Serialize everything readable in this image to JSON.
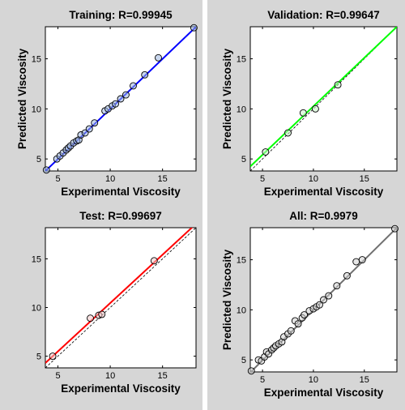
{
  "chart_data": [
    {
      "type": "scatter",
      "title": "Training: R=0.99945",
      "xlabel": "Experimental Viscosity",
      "ylabel": "Predicted Viscosity",
      "xlim": [
        3.8,
        18.2
      ],
      "ylim": [
        3.8,
        18.2
      ],
      "xticks": [
        5,
        10,
        15
      ],
      "yticks": [
        5,
        10,
        15
      ],
      "grid": false,
      "fit_color": "#0000ff",
      "marker_fill": "#9db6e0",
      "fit_line": {
        "x": [
          3.8,
          18.2
        ],
        "y": [
          3.79,
          18.19
        ]
      },
      "identity_line": true,
      "points": [
        {
          "x": 3.9,
          "y": 3.9
        },
        {
          "x": 4.9,
          "y": 5.0
        },
        {
          "x": 5.2,
          "y": 5.3
        },
        {
          "x": 5.5,
          "y": 5.6
        },
        {
          "x": 5.8,
          "y": 5.9
        },
        {
          "x": 6.0,
          "y": 6.1
        },
        {
          "x": 6.2,
          "y": 6.3
        },
        {
          "x": 6.5,
          "y": 6.6
        },
        {
          "x": 6.8,
          "y": 6.8
        },
        {
          "x": 7.0,
          "y": 6.9
        },
        {
          "x": 7.2,
          "y": 7.4
        },
        {
          "x": 7.6,
          "y": 7.6
        },
        {
          "x": 8.0,
          "y": 8.0
        },
        {
          "x": 8.5,
          "y": 8.6
        },
        {
          "x": 9.5,
          "y": 9.8
        },
        {
          "x": 9.8,
          "y": 10.0
        },
        {
          "x": 10.2,
          "y": 10.3
        },
        {
          "x": 10.5,
          "y": 10.5
        },
        {
          "x": 11.0,
          "y": 11.0
        },
        {
          "x": 11.5,
          "y": 11.4
        },
        {
          "x": 12.2,
          "y": 12.3
        },
        {
          "x": 13.3,
          "y": 13.4
        },
        {
          "x": 14.6,
          "y": 15.1
        },
        {
          "x": 18.0,
          "y": 18.1
        }
      ]
    },
    {
      "type": "scatter",
      "title": "Validation: R=0.99647",
      "xlabel": "Experimental Viscosity",
      "ylabel": "Predicted Viscosity",
      "xlim": [
        3.8,
        18.2
      ],
      "ylim": [
        3.8,
        18.2
      ],
      "xticks": [
        5,
        10,
        15
      ],
      "yticks": [
        5,
        10,
        15
      ],
      "grid": false,
      "fit_color": "#00ff00",
      "marker_fill": "#c8f0c8",
      "fit_line": {
        "x": [
          3.8,
          18.2
        ],
        "y": [
          4.25,
          18.2
        ]
      },
      "identity_line": true,
      "points": [
        {
          "x": 5.3,
          "y": 5.7
        },
        {
          "x": 7.5,
          "y": 7.6
        },
        {
          "x": 9.0,
          "y": 9.6
        },
        {
          "x": 10.2,
          "y": 10.0
        },
        {
          "x": 12.4,
          "y": 12.4
        }
      ]
    },
    {
      "type": "scatter",
      "title": "Test: R=0.99697",
      "xlabel": "Experimental Viscosity",
      "ylabel": "",
      "xlim": [
        3.8,
        18.2
      ],
      "ylim": [
        3.8,
        18.2
      ],
      "xticks": [
        5,
        10,
        15
      ],
      "yticks": [
        5,
        10,
        15
      ],
      "grid": false,
      "fit_color": "#ff0000",
      "marker_fill": "#f0c8c8",
      "fit_line": {
        "x": [
          3.8,
          18.2
        ],
        "y": [
          4.3,
          18.6
        ]
      },
      "identity_line": true,
      "points": [
        {
          "x": 4.5,
          "y": 5.0
        },
        {
          "x": 8.1,
          "y": 8.9
        },
        {
          "x": 8.9,
          "y": 9.2
        },
        {
          "x": 9.2,
          "y": 9.3
        },
        {
          "x": 14.2,
          "y": 14.8
        }
      ]
    },
    {
      "type": "scatter",
      "title": "All: R=0.9979",
      "xlabel": "Experimental Viscosity",
      "ylabel": "Predicted Viscosity",
      "xlim": [
        3.8,
        18.2
      ],
      "ylim": [
        3.8,
        18.2
      ],
      "xticks": [
        5,
        10,
        15
      ],
      "yticks": [
        5,
        10,
        15
      ],
      "grid": false,
      "fit_color": "#707070",
      "marker_fill": "#d0d0d0",
      "fit_line": {
        "x": [
          3.8,
          18.2
        ],
        "y": [
          3.75,
          18.2
        ]
      },
      "identity_line": true,
      "points": [
        {
          "x": 3.9,
          "y": 3.9
        },
        {
          "x": 4.6,
          "y": 5.0
        },
        {
          "x": 4.9,
          "y": 4.9
        },
        {
          "x": 5.2,
          "y": 5.3
        },
        {
          "x": 5.4,
          "y": 5.8
        },
        {
          "x": 5.6,
          "y": 5.6
        },
        {
          "x": 5.9,
          "y": 6.0
        },
        {
          "x": 6.1,
          "y": 6.2
        },
        {
          "x": 6.3,
          "y": 6.4
        },
        {
          "x": 6.6,
          "y": 6.6
        },
        {
          "x": 6.9,
          "y": 6.8
        },
        {
          "x": 7.1,
          "y": 7.3
        },
        {
          "x": 7.5,
          "y": 7.6
        },
        {
          "x": 7.8,
          "y": 7.9
        },
        {
          "x": 8.2,
          "y": 8.9
        },
        {
          "x": 8.5,
          "y": 8.6
        },
        {
          "x": 8.9,
          "y": 9.2
        },
        {
          "x": 9.1,
          "y": 9.5
        },
        {
          "x": 9.6,
          "y": 9.9
        },
        {
          "x": 10.0,
          "y": 10.1
        },
        {
          "x": 10.3,
          "y": 10.3
        },
        {
          "x": 10.6,
          "y": 10.5
        },
        {
          "x": 11.0,
          "y": 11.0
        },
        {
          "x": 11.5,
          "y": 11.4
        },
        {
          "x": 12.3,
          "y": 12.4
        },
        {
          "x": 13.3,
          "y": 13.4
        },
        {
          "x": 14.2,
          "y": 14.8
        },
        {
          "x": 14.8,
          "y": 15.0
        },
        {
          "x": 18.0,
          "y": 18.1
        }
      ]
    }
  ]
}
